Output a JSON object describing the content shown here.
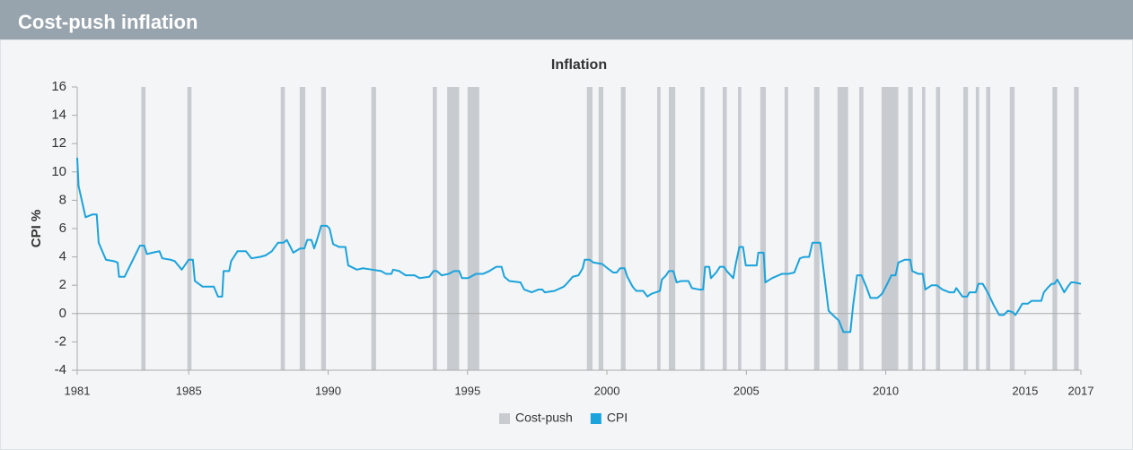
{
  "header": {
    "title": "Cost-push inflation"
  },
  "chart_data": {
    "type": "line",
    "title": "Inflation",
    "ylabel": "CPI %",
    "xlim": [
      1981,
      2017
    ],
    "xticks": [
      1981,
      1985,
      1990,
      1995,
      2000,
      2005,
      2010,
      2015,
      2017
    ],
    "ylim": [
      -4,
      16
    ],
    "yticks": [
      -4,
      -2,
      0,
      2,
      4,
      6,
      8,
      10,
      12,
      14,
      16
    ],
    "shading": {
      "name": "Cost-push",
      "color": "#c8ccd1",
      "periods": [
        [
          1983.3,
          1983.45
        ],
        [
          1984.95,
          1985.1
        ],
        [
          1988.3,
          1988.45
        ],
        [
          1988.98,
          1989.18
        ],
        [
          1989.75,
          1989.92
        ],
        [
          1991.55,
          1991.72
        ],
        [
          1993.75,
          1993.9
        ],
        [
          1994.27,
          1994.7
        ],
        [
          1995.0,
          1995.42
        ],
        [
          1999.28,
          1999.48
        ],
        [
          1999.7,
          1999.87
        ],
        [
          2000.5,
          2000.67
        ],
        [
          2001.8,
          2001.92
        ],
        [
          2002.22,
          2002.45
        ],
        [
          2003.35,
          2003.5
        ],
        [
          2004.15,
          2004.3
        ],
        [
          2004.7,
          2004.82
        ],
        [
          2005.5,
          2005.7
        ],
        [
          2006.37,
          2006.5
        ],
        [
          2007.43,
          2007.62
        ],
        [
          2008.27,
          2008.65
        ],
        [
          2009.05,
          2009.2
        ],
        [
          2009.85,
          2010.45
        ],
        [
          2010.8,
          2010.97
        ],
        [
          2011.3,
          2011.42
        ],
        [
          2011.8,
          2011.95
        ],
        [
          2012.78,
          2012.95
        ],
        [
          2013.23,
          2013.35
        ],
        [
          2013.6,
          2013.75
        ],
        [
          2014.45,
          2014.62
        ],
        [
          2015.98,
          2016.15
        ],
        [
          2016.75,
          2016.92
        ]
      ]
    },
    "series": [
      {
        "name": "CPI",
        "color": "#1ba3dc",
        "x": [
          1981.0,
          1981.05,
          1981.3,
          1981.55,
          1981.7,
          1981.77,
          1982.03,
          1982.32,
          1982.45,
          1982.5,
          1982.7,
          1983.25,
          1983.4,
          1983.5,
          1983.7,
          1983.95,
          1984.05,
          1984.35,
          1984.5,
          1984.75,
          1985.0,
          1985.15,
          1985.22,
          1985.5,
          1985.9,
          1986.05,
          1986.2,
          1986.25,
          1986.45,
          1986.52,
          1986.75,
          1987.05,
          1987.25,
          1987.55,
          1987.75,
          1987.98,
          1988.2,
          1988.4,
          1988.52,
          1988.75,
          1989.0,
          1989.15,
          1989.25,
          1989.4,
          1989.5,
          1989.6,
          1989.75,
          1989.95,
          1990.05,
          1990.18,
          1990.4,
          1990.62,
          1990.72,
          1991.03,
          1991.25,
          1991.57,
          1991.9,
          1992.08,
          1992.27,
          1992.33,
          1992.55,
          1992.78,
          1993.1,
          1993.28,
          1993.63,
          1993.78,
          1993.9,
          1994.07,
          1994.32,
          1994.52,
          1994.7,
          1994.8,
          1995.02,
          1995.3,
          1995.55,
          1995.78,
          1996.03,
          1996.22,
          1996.32,
          1996.5,
          1996.9,
          1997.03,
          1997.3,
          1997.55,
          1997.68,
          1997.77,
          1998.12,
          1998.45,
          1998.6,
          1998.77,
          1998.98,
          1999.13,
          1999.2,
          1999.38,
          1999.52,
          1999.83,
          2000.02,
          2000.22,
          2000.35,
          2000.47,
          2000.63,
          2000.73,
          2000.92,
          2001.05,
          2001.3,
          2001.45,
          2001.6,
          2001.9,
          2001.97,
          2002.12,
          2002.22,
          2002.38,
          2002.5,
          2002.67,
          2002.92,
          2003.05,
          2003.3,
          2003.45,
          2003.52,
          2003.67,
          2003.73,
          2003.92,
          2004.05,
          2004.2,
          2004.3,
          2004.53,
          2004.62,
          2004.75,
          2004.88,
          2004.98,
          2005.37,
          2005.43,
          2005.62,
          2005.68,
          2005.92,
          2006.27,
          2006.5,
          2006.72,
          2006.92,
          2007.08,
          2007.25,
          2007.37,
          2007.65,
          2007.78,
          2007.95,
          2008.1,
          2008.32,
          2008.48,
          2008.73,
          2008.83,
          2008.97,
          2009.13,
          2009.3,
          2009.45,
          2009.7,
          2009.87,
          2010.03,
          2010.2,
          2010.35,
          2010.45,
          2010.68,
          2010.88,
          2010.95,
          2011.17,
          2011.33,
          2011.42,
          2011.65,
          2011.83,
          2012.03,
          2012.28,
          2012.45,
          2012.53,
          2012.75,
          2012.92,
          2013.0,
          2013.23,
          2013.32,
          2013.48,
          2013.68,
          2013.87,
          2014.07,
          2014.23,
          2014.38,
          2014.55,
          2014.65,
          2014.78,
          2014.9,
          2015.1,
          2015.23,
          2015.58,
          2015.67,
          2015.8,
          2015.95,
          2016.05,
          2016.15,
          2016.27,
          2016.4,
          2016.53,
          2016.65,
          2016.75,
          2017.0
        ],
        "values": [
          11,
          9,
          6.8,
          7,
          7,
          5,
          3.8,
          3.7,
          3.6,
          2.6,
          2.6,
          4.8,
          4.8,
          4.2,
          4.3,
          4.4,
          3.9,
          3.8,
          3.7,
          3.1,
          3.8,
          3.8,
          2.3,
          1.9,
          1.9,
          1.2,
          1.2,
          3,
          3,
          3.7,
          4.4,
          4.4,
          3.9,
          4,
          4.1,
          4.4,
          5,
          5,
          5.2,
          4.3,
          4.6,
          4.6,
          5.2,
          5.2,
          4.6,
          5.2,
          6.2,
          6.2,
          6,
          4.9,
          4.7,
          4.7,
          3.4,
          3.1,
          3.2,
          3.1,
          3,
          2.8,
          2.8,
          3.1,
          3,
          2.7,
          2.7,
          2.5,
          2.6,
          3,
          3,
          2.7,
          2.8,
          3,
          3,
          2.5,
          2.5,
          2.8,
          2.8,
          3,
          3.3,
          3.3,
          2.6,
          2.3,
          2.2,
          1.7,
          1.5,
          1.7,
          1.7,
          1.5,
          1.6,
          1.9,
          2.2,
          2.6,
          2.7,
          3.2,
          3.8,
          3.8,
          3.6,
          3.5,
          3.2,
          2.9,
          2.9,
          3.2,
          3.2,
          2.6,
          1.9,
          1.6,
          1.6,
          1.2,
          1.4,
          1.6,
          2.4,
          2.7,
          3,
          3,
          2.2,
          2.3,
          2.3,
          1.8,
          1.7,
          1.7,
          3.3,
          3.3,
          2.5,
          2.9,
          3.3,
          3.3,
          3,
          2.5,
          3.5,
          4.7,
          4.7,
          3.4,
          3.4,
          4.3,
          4.3,
          2.2,
          2.5,
          2.8,
          2.8,
          2.9,
          3.9,
          4,
          4,
          5,
          5,
          2.9,
          0.2,
          -0.1,
          -0.5,
          -1.3,
          -1.3,
          0.6,
          2.7,
          2.7,
          1.9,
          1.1,
          1.1,
          1.4,
          2,
          2.7,
          2.7,
          3.6,
          3.8,
          3.8,
          3,
          2.8,
          2.8,
          1.7,
          2,
          2,
          1.7,
          1.5,
          1.5,
          1.8,
          1.2,
          1.2,
          1.5,
          1.5,
          2.1,
          2.1,
          1.4,
          0.6,
          -0.1,
          -0.1,
          0.2,
          0.1,
          -0.1,
          0.3,
          0.7,
          0.7,
          0.9,
          0.9,
          1.5,
          1.8,
          2.1,
          2.1,
          2.4,
          2,
          1.5,
          1.9,
          2.2,
          2.2,
          2.1
        ]
      }
    ]
  }
}
